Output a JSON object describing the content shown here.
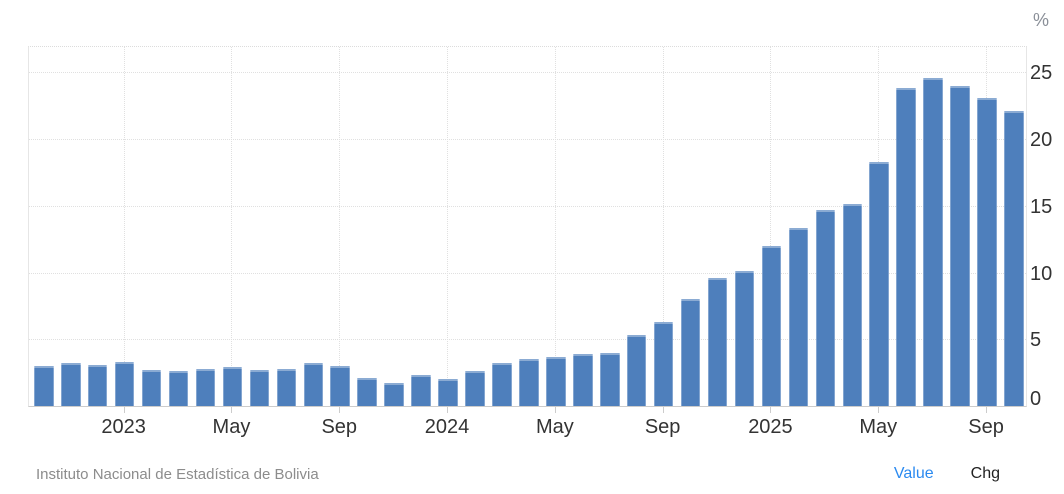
{
  "chart_data": {
    "type": "bar",
    "title": "",
    "unit": "%",
    "categories": [
      "Oct 2022",
      "Nov 2022",
      "Dec 2022",
      "Jan 2023",
      "Feb 2023",
      "Mar 2023",
      "Apr 2023",
      "May 2023",
      "Jun 2023",
      "Jul 2023",
      "Aug 2023",
      "Sep 2023",
      "Oct 2023",
      "Nov 2023",
      "Dec 2023",
      "Jan 2024",
      "Feb 2024",
      "Mar 2024",
      "Apr 2024",
      "May 2024",
      "Jun 2024",
      "Jul 2024",
      "Aug 2024",
      "Sep 2024",
      "Oct 2024",
      "Nov 2024",
      "Dec 2024",
      "Jan 2025",
      "Feb 2025",
      "Mar 2025",
      "Apr 2025",
      "May 2025",
      "Jun 2025",
      "Jul 2025",
      "Aug 2025",
      "Sep 2025",
      "Oct 2025"
    ],
    "values": [
      3.0,
      3.2,
      3.1,
      3.3,
      2.7,
      2.6,
      2.8,
      2.9,
      2.7,
      2.8,
      3.2,
      3.0,
      2.1,
      1.7,
      2.3,
      2.0,
      2.6,
      3.2,
      3.5,
      3.7,
      3.9,
      4.0,
      5.3,
      6.3,
      8.0,
      9.6,
      10.1,
      12.0,
      13.3,
      14.7,
      15.1,
      18.3,
      23.8,
      24.6,
      24.0,
      23.1,
      22.1
    ],
    "xtick_labels": [
      "2023",
      "May",
      "Sep",
      "2024",
      "May",
      "Sep",
      "2025",
      "May",
      "Sep"
    ],
    "xtick_bar_indices": [
      3,
      7,
      11,
      15,
      19,
      23,
      27,
      31,
      35
    ],
    "yticks": [
      0,
      5,
      10,
      15,
      20,
      25
    ],
    "ylim": [
      0,
      27
    ],
    "grid": "dotted",
    "bar_color": "#4e7fbc"
  },
  "footer": {
    "source": "Instituto Nacional de Estadística de Bolivia",
    "value_label": "Value",
    "chg_label": "Chg"
  },
  "colors": {
    "bar": "#4e7fbc",
    "value_link": "#2b8af0",
    "axis_text": "#333333",
    "muted_text": "#8c8c8c"
  }
}
